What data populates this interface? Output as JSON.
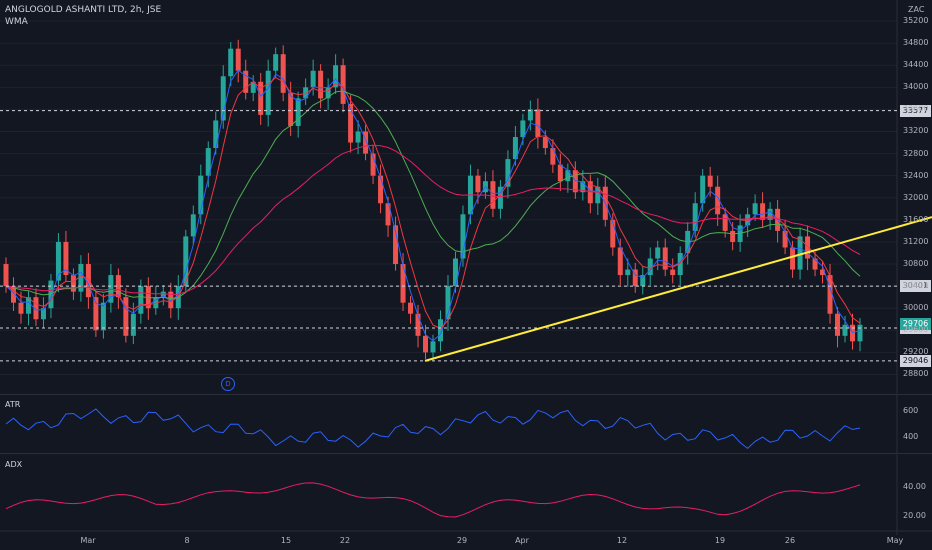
{
  "header": {
    "title": "ANGLOGOLD ASHANTI LTD, 2h, JSE",
    "indicator": "WMA",
    "currency": "ZAC"
  },
  "chart_data": {
    "type": "candlestick",
    "ylim": [
      28700,
      35400
    ],
    "price_ticks": [
      35200,
      34800,
      34400,
      34000,
      33600,
      33200,
      32800,
      32400,
      32000,
      31600,
      31200,
      30800,
      30400,
      30000,
      29600,
      29200,
      28800
    ],
    "x_ticks": [
      "Mar",
      "8",
      "15",
      "22",
      "29",
      "Apr",
      "12",
      "19",
      "26",
      "May"
    ],
    "horizontal_levels": [
      33577,
      30401,
      29641,
      29046
    ],
    "last_price": 29706,
    "trendline": {
      "from_price": 29046,
      "to_price": 31350
    },
    "candles": [
      [
        30800,
        30400
      ],
      [
        30400,
        30100
      ],
      [
        30100,
        29900
      ],
      [
        29900,
        30200
      ],
      [
        30200,
        29800
      ],
      [
        29800,
        30000
      ],
      [
        30000,
        30500
      ],
      [
        30500,
        31200
      ],
      [
        31200,
        30600
      ],
      [
        30600,
        30300
      ],
      [
        30300,
        30800
      ],
      [
        30800,
        30200
      ],
      [
        30200,
        29600
      ],
      [
        29600,
        30100
      ],
      [
        30100,
        30600
      ],
      [
        30600,
        30200
      ],
      [
        30200,
        29500
      ],
      [
        29500,
        29900
      ],
      [
        29900,
        30400
      ],
      [
        30400,
        30000
      ],
      [
        30000,
        30200
      ],
      [
        30200,
        30300
      ],
      [
        30300,
        30000
      ],
      [
        30000,
        30400
      ],
      [
        30400,
        31300
      ],
      [
        31300,
        31700
      ],
      [
        31700,
        32400
      ],
      [
        32400,
        32900
      ],
      [
        32900,
        33400
      ],
      [
        33400,
        34200
      ],
      [
        34200,
        34700
      ],
      [
        34700,
        34300
      ],
      [
        34300,
        33900
      ],
      [
        33900,
        34100
      ],
      [
        34100,
        33500
      ],
      [
        33500,
        34300
      ],
      [
        34300,
        34600
      ],
      [
        34600,
        33900
      ],
      [
        33900,
        33300
      ],
      [
        33300,
        33800
      ],
      [
        33800,
        34000
      ],
      [
        34000,
        34300
      ],
      [
        34300,
        33800
      ],
      [
        33800,
        34000
      ],
      [
        34000,
        34400
      ],
      [
        34400,
        33700
      ],
      [
        33700,
        33000
      ],
      [
        33000,
        33200
      ],
      [
        33200,
        32800
      ],
      [
        32800,
        32400
      ],
      [
        32400,
        31900
      ],
      [
        31900,
        31500
      ],
      [
        31500,
        30800
      ],
      [
        30800,
        30100
      ],
      [
        30100,
        29900
      ],
      [
        29900,
        29500
      ],
      [
        29500,
        29200
      ],
      [
        29200,
        29400
      ],
      [
        29400,
        29800
      ],
      [
        29800,
        30400
      ],
      [
        30400,
        30900
      ],
      [
        30900,
        31700
      ],
      [
        31700,
        32400
      ],
      [
        32400,
        32100
      ],
      [
        32100,
        32300
      ],
      [
        32300,
        31800
      ],
      [
        31800,
        32200
      ],
      [
        32200,
        32700
      ],
      [
        32700,
        33100
      ],
      [
        33100,
        33400
      ],
      [
        33400,
        33600
      ],
      [
        33600,
        33100
      ],
      [
        33100,
        32900
      ],
      [
        32900,
        32600
      ],
      [
        32600,
        32300
      ],
      [
        32300,
        32500
      ],
      [
        32500,
        32100
      ],
      [
        32100,
        32300
      ],
      [
        32300,
        31900
      ],
      [
        31900,
        32200
      ],
      [
        32200,
        31600
      ],
      [
        31600,
        31100
      ],
      [
        31100,
        30600
      ],
      [
        30600,
        30700
      ],
      [
        30700,
        30400
      ],
      [
        30400,
        30600
      ],
      [
        30600,
        30900
      ],
      [
        30900,
        31100
      ],
      [
        31100,
        30700
      ],
      [
        30700,
        30600
      ],
      [
        30600,
        31000
      ],
      [
        31000,
        31400
      ],
      [
        31400,
        31900
      ],
      [
        31900,
        32400
      ],
      [
        32400,
        32200
      ],
      [
        32200,
        31700
      ],
      [
        31700,
        31400
      ],
      [
        31400,
        31200
      ],
      [
        31200,
        31500
      ],
      [
        31500,
        31700
      ],
      [
        31700,
        31900
      ],
      [
        31900,
        31600
      ],
      [
        31600,
        31800
      ],
      [
        31800,
        31400
      ],
      [
        31400,
        31100
      ],
      [
        31100,
        30700
      ],
      [
        30700,
        31300
      ],
      [
        31300,
        30900
      ],
      [
        30900,
        30700
      ],
      [
        30700,
        30600
      ],
      [
        30600,
        29900
      ],
      [
        29900,
        29500
      ],
      [
        29500,
        29700
      ],
      [
        29700,
        29400
      ],
      [
        29400,
        29700
      ]
    ],
    "wma_fast_color": "#2962ff",
    "wma_red_color": "#f23645",
    "wma_green_color": "#4caf50",
    "wma_slow_color": "#e91e63",
    "up_color": "#26a69a",
    "down_color": "#ef5350",
    "trendline_color": "#ffeb3b",
    "atr": {
      "label": "ATR",
      "ticks": [
        600,
        400
      ],
      "ylim": [
        300,
        700
      ],
      "color": "#2962ff"
    },
    "adx": {
      "label": "ADX",
      "ticks": [
        40.0,
        20.0
      ],
      "ylim": [
        10,
        60
      ],
      "color": "#e91e63"
    }
  }
}
